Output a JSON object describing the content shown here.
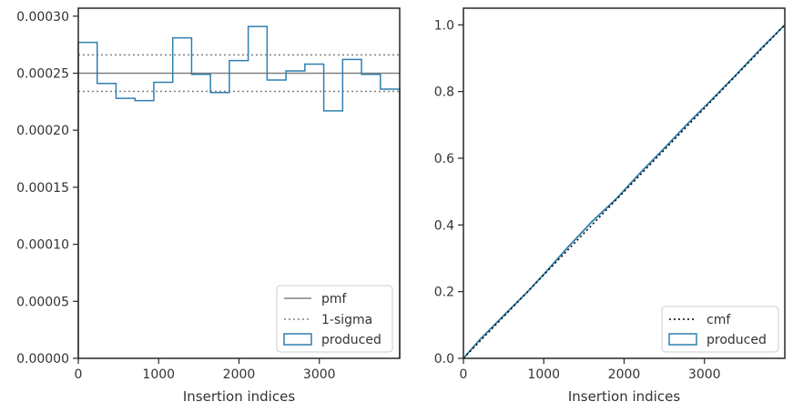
{
  "chart_data": [
    {
      "type": "step",
      "xlabel": "Insertion indices",
      "xlim": [
        0,
        4000
      ],
      "ylim": [
        0,
        0.000307
      ],
      "xticks": [
        0,
        1000,
        2000,
        3000
      ],
      "xtick_labels": [
        "0",
        "1000",
        "2000",
        "3000"
      ],
      "yticks": [
        0,
        5e-05,
        0.0001,
        0.00015,
        0.0002,
        0.00025,
        0.0003
      ],
      "ytick_labels": [
        "0.00000",
        "0.00005",
        "0.00010",
        "0.00015",
        "0.00020",
        "0.00025",
        "0.00030"
      ],
      "pmf": 0.00025,
      "sigma_bounds": [
        0.000234,
        0.000266
      ],
      "bin_edges": [
        0,
        235,
        470,
        705,
        940,
        1175,
        1410,
        1645,
        1880,
        2115,
        2350,
        2585,
        2820,
        3055,
        3290,
        3525,
        3760,
        4000
      ],
      "produced": [
        0.000277,
        0.000241,
        0.000228,
        0.000226,
        0.000242,
        0.000281,
        0.000249,
        0.000233,
        0.000261,
        0.000291,
        0.000244,
        0.000252,
        0.000258,
        0.000217,
        0.000262,
        0.000249,
        0.000236
      ],
      "legend": [
        "pmf",
        "1-sigma",
        "produced"
      ],
      "legend_position": "lower right"
    },
    {
      "type": "line",
      "xlabel": "Insertion indices",
      "xlim": [
        0,
        4000
      ],
      "ylim": [
        0,
        1.05
      ],
      "xticks": [
        0,
        1000,
        2000,
        3000
      ],
      "xtick_labels": [
        "0",
        "1000",
        "2000",
        "3000"
      ],
      "yticks": [
        0,
        0.2,
        0.4,
        0.6,
        0.8,
        1.0
      ],
      "ytick_labels": [
        "0.0",
        "0.2",
        "0.4",
        "0.6",
        "0.8",
        "1.0"
      ],
      "cmf": {
        "x": [
          0,
          4000
        ],
        "y": [
          0,
          1
        ]
      },
      "produced": {
        "x": [
          0,
          200,
          500,
          800,
          1000,
          1300,
          1600,
          1900,
          2200,
          2500,
          2800,
          3100,
          3400,
          3700,
          4000
        ],
        "y": [
          0,
          0.055,
          0.128,
          0.2,
          0.252,
          0.333,
          0.41,
          0.478,
          0.556,
          0.63,
          0.706,
          0.778,
          0.852,
          0.928,
          1.0
        ]
      },
      "legend": [
        "cmf",
        "produced"
      ],
      "legend_position": "lower right"
    }
  ],
  "colors": {
    "produced": "#2f7fb0",
    "pmf": "#808080",
    "sigma": "#808080",
    "cmf": "#000000",
    "axes": "#262626"
  }
}
